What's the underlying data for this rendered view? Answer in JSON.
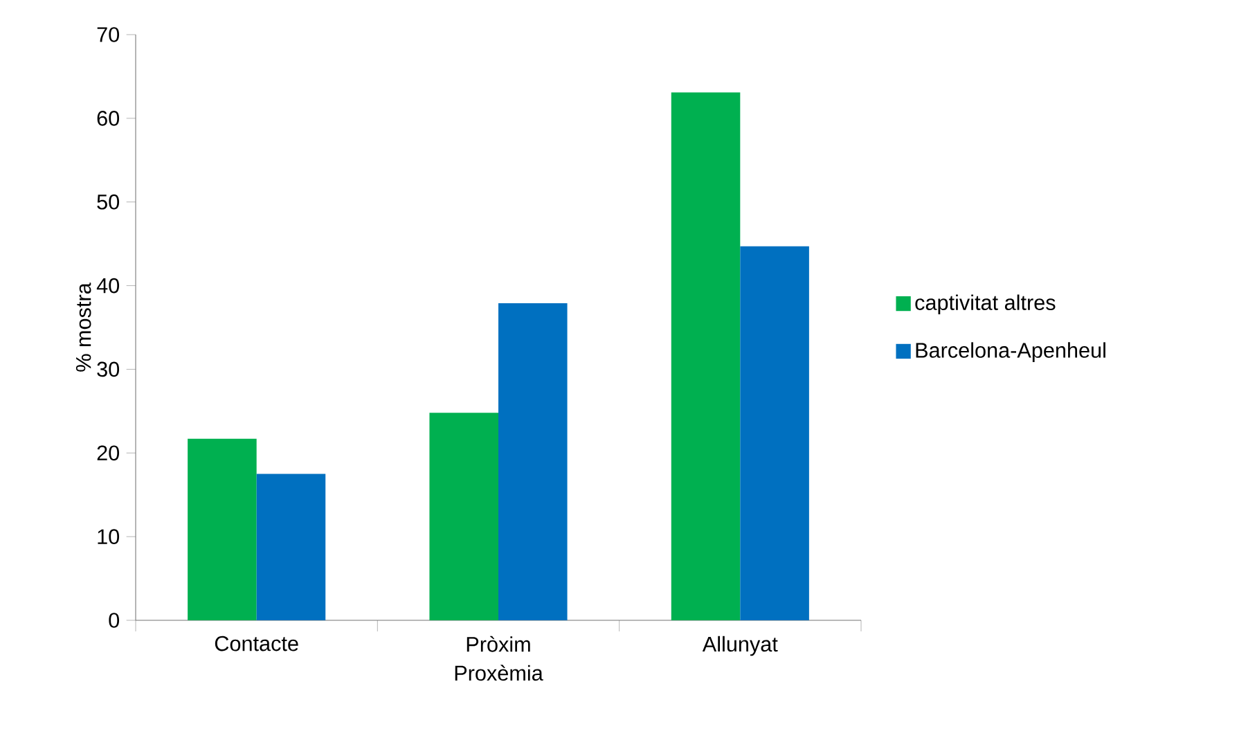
{
  "chart_data": {
    "type": "bar",
    "xlabel": "Proxèmia",
    "ylabel": "% mostra",
    "categories": [
      "Contacte",
      "Pròxim",
      "Allunyat"
    ],
    "series": [
      {
        "name": "captivitat altres",
        "color": "#00b050",
        "values": [
          21.7,
          24.8,
          63.1
        ]
      },
      {
        "name": "Barcelona-Apenheul",
        "color": "#0070c0",
        "values": [
          17.5,
          37.9,
          44.7
        ]
      }
    ],
    "ylim": [
      0,
      70
    ],
    "yticks": [
      0,
      10,
      20,
      30,
      40,
      50,
      60,
      70
    ],
    "grid": false,
    "legend": "right"
  }
}
